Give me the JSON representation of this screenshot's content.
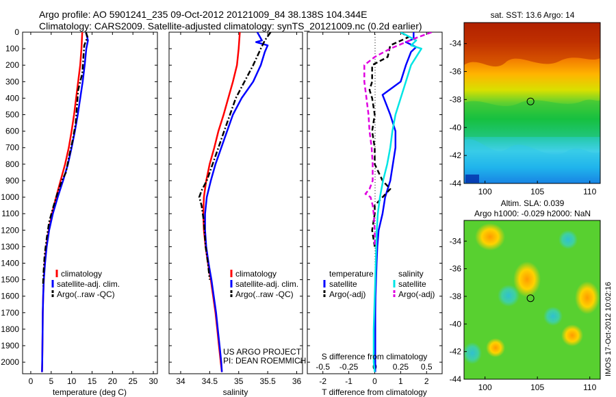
{
  "header": {
    "line1": "Argo profile: AO 5901241_235 09-Oct-2012 20121009_84 38.138S 104.344E",
    "line2": "Climatology: CARS2009. Satellite-adjusted climatology: synTS_20121009.nc (0.2d earlier)"
  },
  "depth_ticks": [
    "0",
    "100",
    "200",
    "300",
    "400",
    "500",
    "600",
    "700",
    "800",
    "900",
    "1000",
    "1100",
    "1200",
    "1300",
    "1400",
    "1500",
    "1600",
    "1700",
    "1800",
    "1900",
    "2000"
  ],
  "colors": {
    "climatology": "#ff0000",
    "satellite": "#0000ff",
    "argo": "#000000",
    "sal_satellite": "#00e5e5",
    "sal_argo": "#e000e0"
  },
  "notes": {
    "project": "US ARGO PROJECT",
    "pi": "PI: DEAN ROEMMICH",
    "stamp": "IMOS 17-Oct-2012 10:02:16"
  },
  "chart_data": [
    {
      "type": "line",
      "xlabel": "temperature (deg C)",
      "ylabel": "",
      "xlim": [
        -2,
        31
      ],
      "ylim": [
        2070,
        0
      ],
      "xticks": [
        "0",
        "5",
        "10",
        "15",
        "20",
        "25",
        "30"
      ],
      "legend": {
        "position": "lower-center",
        "entries": [
          "climatology",
          "satellite-adj. clim.",
          "Argo(..raw -QC)"
        ]
      },
      "series": [
        {
          "name": "climatology",
          "color": "red",
          "style": "solid",
          "points": [
            [
              12.6,
              0
            ],
            [
              12.5,
              50
            ],
            [
              12.4,
              100
            ],
            [
              12.1,
              200
            ],
            [
              11.6,
              300
            ],
            [
              11.1,
              400
            ],
            [
              10.6,
              500
            ],
            [
              10.0,
              600
            ],
            [
              9.3,
              700
            ],
            [
              8.4,
              800
            ],
            [
              7.3,
              900
            ],
            [
              6.2,
              1000
            ],
            [
              5.2,
              1100
            ],
            [
              4.4,
              1200
            ],
            [
              3.8,
              1300
            ],
            [
              3.4,
              1400
            ],
            [
              3.2,
              1500
            ],
            [
              3.05,
              1600
            ],
            [
              2.95,
              1700
            ],
            [
              2.9,
              1800
            ],
            [
              2.85,
              1900
            ],
            [
              2.8,
              2000
            ],
            [
              2.75,
              2060
            ]
          ]
        },
        {
          "name": "satellite-adj. clim.",
          "color": "blue",
          "style": "solid",
          "points": [
            [
              13.5,
              0
            ],
            [
              14.0,
              50
            ],
            [
              13.6,
              100
            ],
            [
              13.4,
              150
            ],
            [
              13.2,
              200
            ],
            [
              12.7,
              300
            ],
            [
              12.1,
              400
            ],
            [
              11.5,
              500
            ],
            [
              10.8,
              600
            ],
            [
              10.0,
              700
            ],
            [
              9.1,
              800
            ],
            [
              7.9,
              900
            ],
            [
              6.6,
              1000
            ],
            [
              5.4,
              1100
            ],
            [
              4.5,
              1200
            ],
            [
              3.9,
              1300
            ],
            [
              3.5,
              1400
            ],
            [
              3.2,
              1500
            ],
            [
              3.05,
              1600
            ],
            [
              2.95,
              1700
            ],
            [
              2.9,
              1800
            ],
            [
              2.85,
              1900
            ],
            [
              2.8,
              2000
            ],
            [
              2.75,
              2060
            ]
          ]
        },
        {
          "name": "Argo(..raw -QC)",
          "color": "black",
          "style": "dashdot",
          "points": [
            [
              13.5,
              0
            ],
            [
              13.9,
              30
            ],
            [
              13.1,
              80
            ],
            [
              12.9,
              150
            ],
            [
              12.6,
              250
            ],
            [
              11.6,
              350
            ],
            [
              11.3,
              450
            ],
            [
              11.0,
              550
            ],
            [
              10.3,
              650
            ],
            [
              9.4,
              750
            ],
            [
              8.6,
              850
            ],
            [
              7.6,
              900
            ],
            [
              6.5,
              980
            ],
            [
              5.5,
              1060
            ],
            [
              4.5,
              1150
            ],
            [
              3.9,
              1250
            ],
            [
              3.4,
              1350
            ],
            [
              3.15,
              1450
            ],
            [
              3.0,
              1540
            ]
          ]
        }
      ]
    },
    {
      "type": "line",
      "xlabel": "salinity",
      "ylabel": "",
      "xlim": [
        33.8,
        36.1
      ],
      "ylim": [
        2070,
        0
      ],
      "xticks": [
        "34",
        "34.5",
        "35",
        "35.5",
        "36"
      ],
      "legend": {
        "position": "lower-center",
        "entries": [
          "climatology",
          "satellite-adj. clim.",
          "Argo(..raw -QC)"
        ]
      },
      "series": [
        {
          "name": "climatology",
          "color": "red",
          "style": "solid",
          "points": [
            [
              35.02,
              0
            ],
            [
              35.0,
              100
            ],
            [
              34.97,
              200
            ],
            [
              34.9,
              300
            ],
            [
              34.82,
              400
            ],
            [
              34.74,
              500
            ],
            [
              34.65,
              600
            ],
            [
              34.58,
              700
            ],
            [
              34.5,
              800
            ],
            [
              34.44,
              900
            ],
            [
              34.4,
              1000
            ],
            [
              34.39,
              1100
            ],
            [
              34.4,
              1200
            ],
            [
              34.43,
              1300
            ],
            [
              34.47,
              1400
            ],
            [
              34.52,
              1500
            ],
            [
              34.56,
              1600
            ],
            [
              34.6,
              1700
            ],
            [
              34.63,
              1800
            ],
            [
              34.66,
              1900
            ],
            [
              34.69,
              2000
            ],
            [
              34.71,
              2060
            ]
          ]
        },
        {
          "name": "satellite-adj. clim.",
          "color": "blue",
          "style": "solid",
          "points": [
            [
              35.32,
              0
            ],
            [
              35.4,
              50
            ],
            [
              35.3,
              60
            ],
            [
              35.5,
              80
            ],
            [
              35.45,
              120
            ],
            [
              35.38,
              200
            ],
            [
              35.25,
              300
            ],
            [
              35.05,
              400
            ],
            [
              34.9,
              500
            ],
            [
              34.8,
              600
            ],
            [
              34.7,
              700
            ],
            [
              34.6,
              800
            ],
            [
              34.52,
              900
            ],
            [
              34.45,
              1000
            ],
            [
              34.42,
              1100
            ],
            [
              34.42,
              1200
            ],
            [
              34.44,
              1300
            ],
            [
              34.48,
              1400
            ],
            [
              34.53,
              1500
            ],
            [
              34.57,
              1600
            ],
            [
              34.61,
              1700
            ],
            [
              34.64,
              1800
            ],
            [
              34.67,
              1900
            ],
            [
              34.7,
              2000
            ],
            [
              34.71,
              2060
            ]
          ]
        },
        {
          "name": "Argo(..raw -QC)",
          "color": "black",
          "style": "dashdot",
          "points": [
            [
              35.55,
              0
            ],
            [
              35.45,
              50
            ],
            [
              35.38,
              100
            ],
            [
              35.25,
              200
            ],
            [
              35.1,
              300
            ],
            [
              34.95,
              400
            ],
            [
              34.85,
              500
            ],
            [
              34.75,
              600
            ],
            [
              34.65,
              700
            ],
            [
              34.55,
              800
            ],
            [
              34.45,
              900
            ],
            [
              34.36,
              960
            ],
            [
              34.32,
              1000
            ],
            [
              34.36,
              1050
            ],
            [
              34.4,
              1150
            ],
            [
              34.43,
              1300
            ],
            [
              34.47,
              1400
            ],
            [
              34.5,
              1500
            ]
          ]
        }
      ]
    },
    {
      "type": "line",
      "xlabel": "T difference from climatology",
      "x2label": "S difference from climatology",
      "ylabel": "",
      "xlim": [
        -2.6,
        2.6
      ],
      "x2lim": [
        -0.65,
        0.65
      ],
      "ylim": [
        2070,
        0
      ],
      "xticks": [
        "-2",
        "-1",
        "0",
        "1",
        "2"
      ],
      "x2ticks": [
        "-0.5",
        "-0.25",
        "0",
        "0.25",
        "0.5"
      ],
      "legend": {
        "position": "lower-center",
        "title_left": "temperature",
        "title_right": "salinity",
        "entries": [
          "satellite",
          "Argo(-adj)",
          "satellite",
          "Argo(-adj)"
        ]
      },
      "series": [
        {
          "name": "satellite",
          "group": "temperature",
          "color": "blue",
          "style": "solid",
          "points": [
            [
              1.5,
              0
            ],
            [
              1.5,
              40
            ],
            [
              1.2,
              60
            ],
            [
              1.6,
              90
            ],
            [
              1.4,
              120
            ],
            [
              1.2,
              200
            ],
            [
              1.0,
              300
            ],
            [
              0.3,
              380
            ],
            [
              0.4,
              420
            ],
            [
              0.6,
              500
            ],
            [
              0.8,
              600
            ],
            [
              0.8,
              700
            ],
            [
              0.7,
              800
            ],
            [
              0.6,
              900
            ],
            [
              0.4,
              1000
            ],
            [
              0.3,
              1100
            ],
            [
              0.15,
              1200
            ],
            [
              0.1,
              1300
            ],
            [
              0.07,
              1400
            ],
            [
              0.05,
              1500
            ],
            [
              0.03,
              1600
            ],
            [
              0.02,
              1700
            ],
            [
              0.02,
              1800
            ],
            [
              0.02,
              1900
            ],
            [
              0.02,
              2000
            ],
            [
              0.02,
              2060
            ]
          ]
        },
        {
          "name": "Argo(-adj)",
          "group": "temperature",
          "color": "black",
          "style": "dashed",
          "points": [
            [
              1.0,
              0
            ],
            [
              1.3,
              30
            ],
            [
              0.6,
              80
            ],
            [
              0.5,
              150
            ],
            [
              -0.1,
              200
            ],
            [
              -0.1,
              300
            ],
            [
              -0.2,
              350
            ],
            [
              -0.1,
              400
            ],
            [
              0.0,
              500
            ],
            [
              -0.1,
              600
            ],
            [
              0.0,
              700
            ],
            [
              0.0,
              800
            ],
            [
              0.3,
              900
            ],
            [
              0.6,
              950
            ],
            [
              0.3,
              1000
            ],
            [
              0.0,
              1050
            ],
            [
              0.0,
              1100
            ],
            [
              -0.1,
              1200
            ],
            [
              0.0,
              1300
            ]
          ]
        },
        {
          "name": "satellite",
          "group": "salinity",
          "color": "cyan",
          "style": "solid",
          "points": [
            [
              0.25,
              0
            ],
            [
              0.4,
              50
            ],
            [
              0.35,
              80
            ],
            [
              0.45,
              100
            ],
            [
              0.35,
              200
            ],
            [
              0.3,
              300
            ],
            [
              0.25,
              400
            ],
            [
              0.2,
              500
            ],
            [
              0.17,
              600
            ],
            [
              0.15,
              700
            ],
            [
              0.12,
              800
            ],
            [
              0.08,
              900
            ],
            [
              0.05,
              1000
            ],
            [
              0.03,
              1100
            ],
            [
              0.02,
              1200
            ],
            [
              0.01,
              1400
            ],
            [
              0.0,
              1600
            ],
            [
              -0.01,
              1800
            ],
            [
              -0.01,
              2000
            ],
            [
              0.0,
              2060
            ]
          ]
        },
        {
          "name": "Argo(-adj)",
          "group": "salinity",
          "color": "magenta",
          "style": "dashed",
          "points": [
            [
              0.55,
              0
            ],
            [
              0.42,
              30
            ],
            [
              0.3,
              60
            ],
            [
              0.15,
              100
            ],
            [
              0.0,
              150
            ],
            [
              -0.1,
              200
            ],
            [
              -0.1,
              300
            ],
            [
              -0.08,
              400
            ],
            [
              -0.06,
              500
            ],
            [
              -0.05,
              600
            ],
            [
              -0.03,
              700
            ],
            [
              -0.02,
              800
            ],
            [
              -0.02,
              900
            ],
            [
              -0.05,
              950
            ],
            [
              -0.09,
              980
            ],
            [
              -0.04,
              1000
            ],
            [
              -0.02,
              1050
            ],
            [
              -0.01,
              1100
            ],
            [
              0.0,
              1200
            ],
            [
              0.0,
              1300
            ]
          ]
        }
      ]
    },
    {
      "type": "heatmap",
      "title": "sat. SST: 13.6 Argo: 14",
      "xlim": [
        98,
        111
      ],
      "ylim": [
        -44,
        -32.5
      ],
      "xticks": [
        "100",
        "105",
        "110"
      ],
      "yticks": [
        "-34",
        "-36",
        "-38",
        "-40",
        "-42",
        "-44"
      ],
      "marker": {
        "lon": 104.344,
        "lat": -38.138
      }
    },
    {
      "type": "heatmap",
      "title": "Altim. SLA: 0.039",
      "subtitle": "Argo h1000: -0.029 h2000: NaN",
      "xlim": [
        98,
        111
      ],
      "ylim": [
        -44,
        -32.5
      ],
      "xticks": [
        "100",
        "105",
        "110"
      ],
      "yticks": [
        "-34",
        "-36",
        "-38",
        "-40",
        "-42",
        "-44"
      ],
      "marker": {
        "lon": 104.344,
        "lat": -38.138
      }
    }
  ]
}
